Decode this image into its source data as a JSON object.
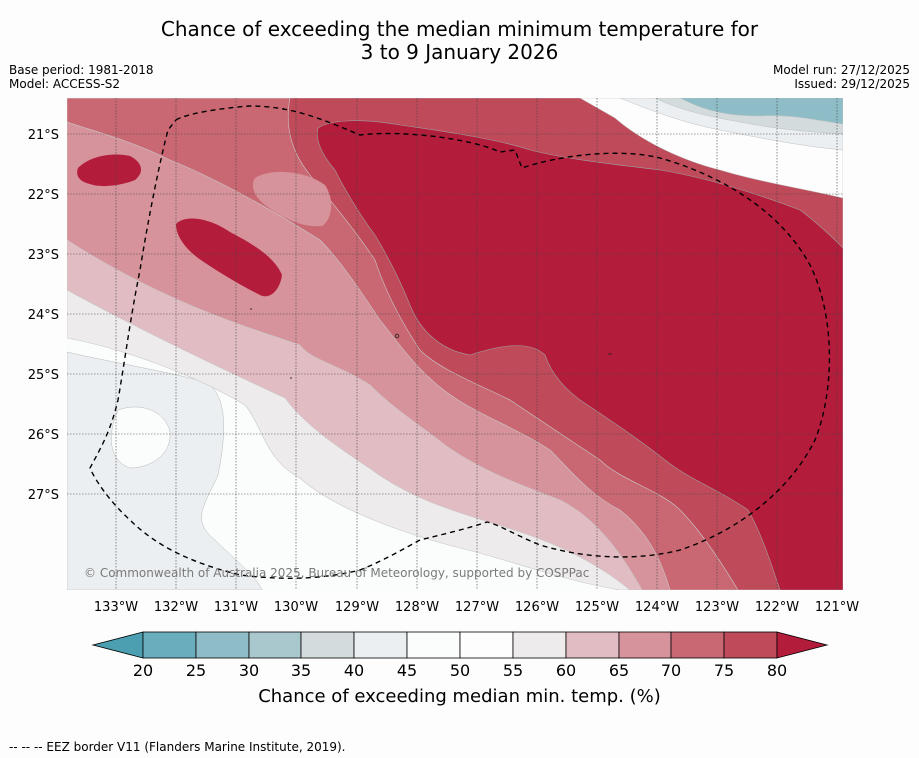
{
  "header": {
    "title_line1": "Chance of exceeding the median minimum temperature for",
    "title_line2": "3 to 9 January 2026",
    "base_period": "Base period: 1981-2018",
    "model": "Model: ACCESS-S2",
    "model_run": "Model run: 27/12/2025",
    "issued": "Issued: 29/12/2025"
  },
  "map": {
    "copyright": "© Commonwealth of Australia 2025, Bureau of Meteorology, supported by COSPPac",
    "lat_labels": [
      "21°S",
      "22°S",
      "23°S",
      "24°S",
      "25°S",
      "26°S",
      "27°S"
    ],
    "lon_labels": [
      "133°W",
      "132°W",
      "131°W",
      "130°W",
      "129°W",
      "128°W",
      "127°W",
      "126°W",
      "125°W",
      "124°W",
      "123°W",
      "122°W",
      "121°W"
    ],
    "colors": {
      "c20": "#4c9fb0",
      "c25": "#6aaebd",
      "c30": "#8ebdc7",
      "c35": "#a9c8cd",
      "c40": "#d3dbdd",
      "c45": "#ebeff2",
      "c50": "#fbfcfc",
      "c55": "#fdfdfd",
      "c60": "#eeebec",
      "c65": "#e1bcc2",
      "c70": "#d7939b",
      "c75": "#c96873",
      "c80": "#bf4a5a",
      "c85": "#b31c3b"
    }
  },
  "colorbar": {
    "ticks": [
      "20",
      "25",
      "30",
      "35",
      "40",
      "45",
      "50",
      "55",
      "60",
      "65",
      "70",
      "75",
      "80"
    ],
    "label": "Chance of exceeding median min. temp. (%)"
  },
  "footnote": "--  --  -- EEZ border V11 (Flanders Marine Institute, 2019)."
}
